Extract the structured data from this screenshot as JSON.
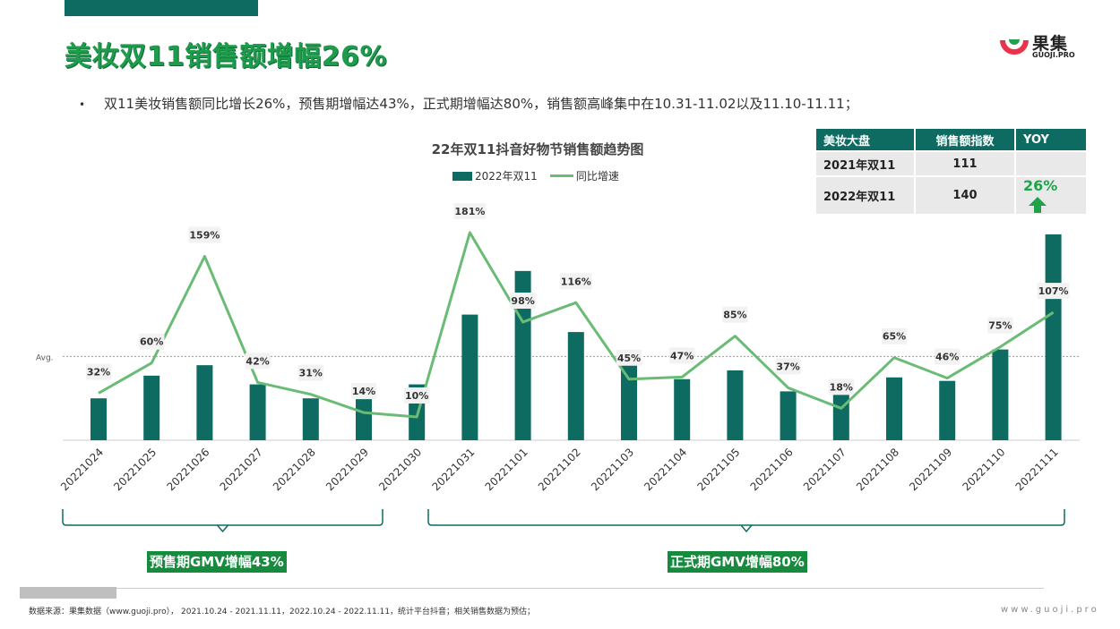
{
  "title": "美妆双11销售额增幅26%",
  "bullet": "双11美妆销售额同比增长26%，预售期增幅达43%，正式期增幅达80%，销售额高峰集中在10.31-11.02以及11.10-11.11；",
  "logo": {
    "name": "果集",
    "sub": "GUOJI.PRO"
  },
  "kpi_table": {
    "headers": [
      "美妆大盘",
      "销售额指数",
      "YOY"
    ],
    "rows": [
      {
        "period": "2021年双11",
        "index": "111",
        "yoy": ""
      },
      {
        "period": "2022年双11",
        "index": "140",
        "yoy": "26%"
      }
    ],
    "trend_icon": "up-arrow-icon"
  },
  "phases": {
    "presale": "预售期GMV增幅43%",
    "formal": "正式期GMV增幅80%"
  },
  "footer": {
    "source": "数据来源：果集数据（www.guoji.pro）， 2021.10.24 - 2021.11.11，2022.10.24 - 2022.11.11，统计平台抖音；相关销售数据为预估；",
    "site": "www.guoji.pro"
  },
  "colors": {
    "bar": "#0e6b62",
    "line": "#6abb76",
    "title": "#1e9b4b",
    "label_bg": "#168b3e"
  },
  "chart_data": {
    "type": "bar",
    "title": "22年双11抖音好物节销售额趋势图",
    "avg_label": "Avg.",
    "categories": [
      "20221024",
      "20221025",
      "20221026",
      "20221027",
      "20221028",
      "20221029",
      "20221030",
      "20221031",
      "20221101",
      "20221102",
      "20221103",
      "20221104",
      "20221105",
      "20221106",
      "20221107",
      "20221108",
      "20221109",
      "20221110",
      "20221111"
    ],
    "series": [
      {
        "name": "2022年双11",
        "type": "bar",
        "values": [
          24,
          37,
          43,
          32,
          24,
          30,
          32,
          72,
          97,
          62,
          47,
          35,
          40,
          28,
          30,
          36,
          34,
          52,
          118
        ]
      },
      {
        "name": "同比增速",
        "type": "line",
        "values": [
          32,
          60,
          159,
          42,
          31,
          14,
          10,
          181,
          98,
          116,
          45,
          47,
          85,
          37,
          18,
          65,
          46,
          75,
          107
        ],
        "labels": [
          "32%",
          "60%",
          "159%",
          "42%",
          "31%",
          "14%",
          "10%",
          "181%",
          "98%",
          "116%",
          "45%",
          "47%",
          "85%",
          "37%",
          "18%",
          "65%",
          "46%",
          "75%",
          "107%"
        ]
      }
    ],
    "avg_value": 48,
    "bar_max": 120,
    "line_range": [
      0,
      190
    ]
  }
}
